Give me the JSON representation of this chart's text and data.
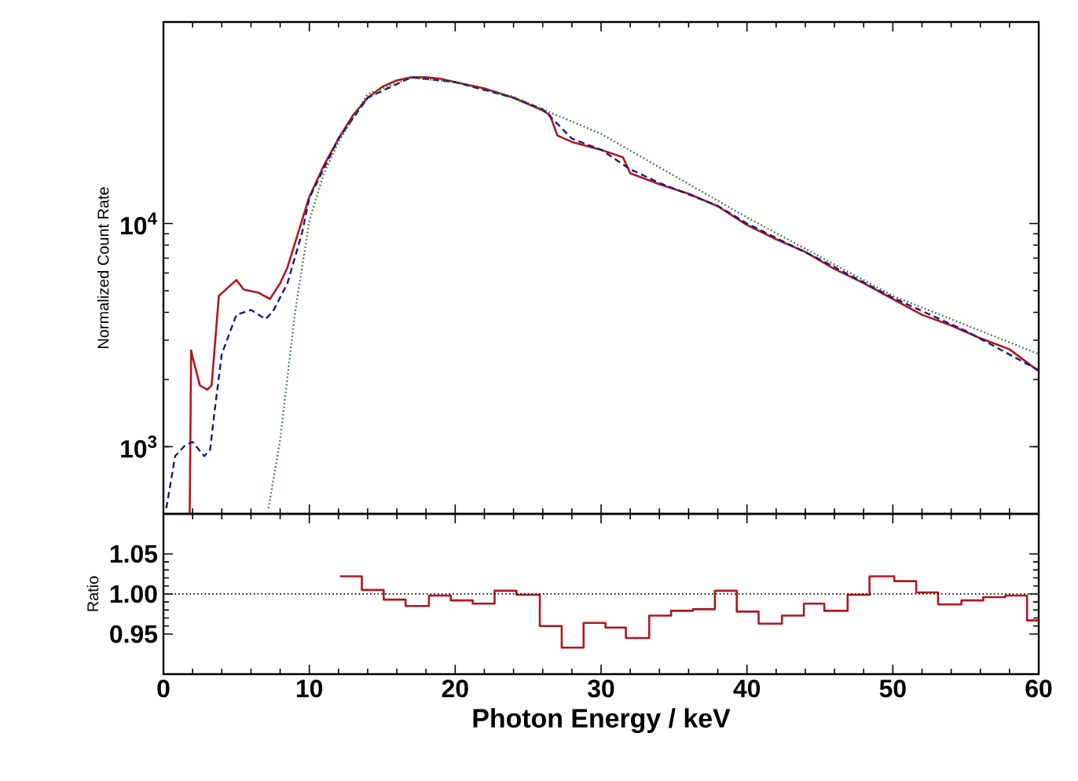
{
  "chart_data": [
    {
      "type": "line",
      "ylabel": "Normalized Count Rate",
      "log": "y",
      "xlim": [
        0,
        60
      ],
      "xticks": [
        0,
        10,
        20,
        30,
        40,
        50,
        60
      ],
      "ylim": [
        500,
        80000
      ],
      "yticks": [
        {
          "value": 1000,
          "label": "10$^{3}$"
        },
        {
          "value": 10000,
          "label": "10$^{4}$"
        }
      ],
      "tick_labels": "y",
      "series": [
        {
          "color": "#b0171f",
          "line_style": "solid",
          "x": [
            1.8,
            1.9,
            2.0,
            2.5,
            3.0,
            3.3,
            3.8,
            4.5,
            5.0,
            5.5,
            6.5,
            7.3,
            8.0,
            8.5,
            9.0,
            10,
            11,
            12,
            13,
            14,
            15,
            16,
            17,
            18,
            19,
            20,
            22,
            24,
            26,
            26.5,
            27,
            28,
            30,
            31.5,
            32,
            34,
            36,
            38,
            40,
            42,
            44,
            46,
            48,
            50,
            52,
            54,
            56,
            58,
            60
          ],
          "values": [
            500,
            2700,
            2520,
            1880,
            1800,
            1880,
            4740,
            5220,
            5580,
            5060,
            4900,
            4590,
            5400,
            6350,
            8100,
            13170,
            18200,
            24000,
            30600,
            36600,
            41000,
            43800,
            45200,
            45200,
            44500,
            43000,
            40300,
            36600,
            32100,
            30600,
            24800,
            23200,
            21400,
            19800,
            16800,
            15000,
            13600,
            11950,
            9840,
            8500,
            7460,
            6250,
            5400,
            4590,
            3900,
            3490,
            3060,
            2730,
            2180
          ]
        },
        {
          "color": "#1a1a80",
          "line_style": "dashed",
          "x": [
            0.2,
            0.8,
            1.5,
            2.0,
            2.8,
            3.2,
            3.5,
            4,
            5,
            6,
            7,
            7.5,
            8.5,
            9.5,
            10,
            12,
            14,
            17,
            20,
            24,
            26,
            27,
            28,
            30,
            32,
            34,
            38,
            40,
            45,
            50,
            55,
            60
          ],
          "values": [
            530,
            907,
            1016,
            1050,
            907,
            968,
            1430,
            2600,
            3900,
            4100,
            3730,
            4030,
            5400,
            9080,
            13000,
            24000,
            36600,
            45200,
            43000,
            36600,
            32500,
            28000,
            24000,
            21400,
            17500,
            15200,
            12000,
            10000,
            6900,
            4650,
            3300,
            2200
          ]
        },
        {
          "color": "#2e6b2e",
          "line_style": "dotted",
          "x": [
            7.2,
            8,
            9,
            10,
            11,
            12,
            14,
            17,
            20,
            24,
            26,
            30,
            40,
            50,
            60
          ],
          "values": [
            530,
            1070,
            3900,
            10300,
            16800,
            23200,
            38000,
            45000,
            43000,
            37000,
            32500,
            25200,
            10650,
            4740,
            2600
          ]
        }
      ]
    },
    {
      "type": "histogram",
      "xlabel": "Photon Energy / keV",
      "ylabel": "Ratio",
      "xlim": [
        0,
        60
      ],
      "xticks": [
        0,
        10,
        20,
        30,
        40,
        50,
        60
      ],
      "ylim": [
        0.9,
        1.1
      ],
      "yticks": [
        {
          "value": 0.95,
          "label": "0.95"
        },
        {
          "value": 1.0,
          "label": "1.00"
        },
        {
          "value": 1.05,
          "label": "1.05"
        }
      ],
      "color": "#b0171f",
      "bins": [
        12.1,
        13.6,
        15.1,
        16.6,
        18.2,
        19.7,
        21.2,
        22.7,
        24.2,
        25.8,
        27.3,
        28.8,
        30.3,
        31.7,
        33.3,
        34.8,
        36.3,
        37.8,
        39.3,
        40.8,
        42.4,
        43.9,
        45.3,
        46.9,
        48.4,
        50.1,
        51.6,
        53.1,
        54.7,
        56.2,
        57.7,
        59.2,
        60
      ],
      "values": [
        1.022,
        1.005,
        0.993,
        0.985,
        0.998,
        0.992,
        0.988,
        1.004,
        0.999,
        0.96,
        0.933,
        0.964,
        0.958,
        0.945,
        0.973,
        0.979,
        0.981,
        1.004,
        0.978,
        0.963,
        0.973,
        0.988,
        0.979,
        0.999,
        1.022,
        1.016,
        1.002,
        0.987,
        0.992,
        0.996,
        0.998,
        0.967
      ],
      "ref_lines": [
        {
          "axis": "y",
          "value": 1.0,
          "line_style": "dotted",
          "color": "#000000"
        }
      ]
    }
  ]
}
